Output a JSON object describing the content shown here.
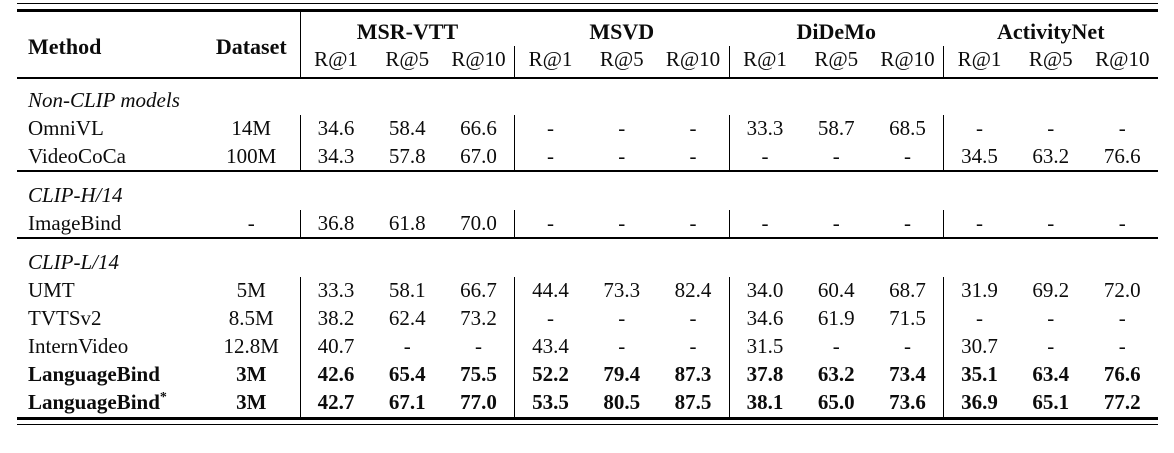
{
  "table": {
    "columns": {
      "method": "Method",
      "dataset": "Dataset"
    },
    "groups": [
      {
        "label": "MSR-VTT",
        "metrics": [
          "R@1",
          "R@5",
          "R@10"
        ]
      },
      {
        "label": "MSVD",
        "metrics": [
          "R@1",
          "R@5",
          "R@10"
        ]
      },
      {
        "label": "DiDeMo",
        "metrics": [
          "R@1",
          "R@5",
          "R@10"
        ]
      },
      {
        "label": "ActivityNet",
        "metrics": [
          "R@1",
          "R@5",
          "R@10"
        ]
      }
    ],
    "sections": [
      {
        "header": "Non-CLIP models",
        "rows": [
          {
            "method": "OmniVL",
            "dataset": "14M",
            "bold": false,
            "values": [
              "34.6",
              "58.4",
              "66.6",
              "-",
              "-",
              "-",
              "33.3",
              "58.7",
              "68.5",
              "-",
              "-",
              "-"
            ]
          },
          {
            "method": "VideoCoCa",
            "dataset": "100M",
            "bold": false,
            "values": [
              "34.3",
              "57.8",
              "67.0",
              "-",
              "-",
              "-",
              "-",
              "-",
              "-",
              "34.5",
              "63.2",
              "76.6"
            ]
          }
        ]
      },
      {
        "header": "CLIP-H/14",
        "rows": [
          {
            "method": "ImageBind",
            "dataset": "-",
            "bold": false,
            "values": [
              "36.8",
              "61.8",
              "70.0",
              "-",
              "-",
              "-",
              "-",
              "-",
              "-",
              "-",
              "-",
              "-"
            ]
          }
        ]
      },
      {
        "header": "CLIP-L/14",
        "rows": [
          {
            "method": "UMT",
            "dataset": "5M",
            "bold": false,
            "values": [
              "33.3",
              "58.1",
              "66.7",
              "44.4",
              "73.3",
              "82.4",
              "34.0",
              "60.4",
              "68.7",
              "31.9",
              "69.2",
              "72.0"
            ]
          },
          {
            "method": "TVTSv2",
            "dataset": "8.5M",
            "bold": false,
            "values": [
              "38.2",
              "62.4",
              "73.2",
              "-",
              "-",
              "-",
              "34.6",
              "61.9",
              "71.5",
              "-",
              "-",
              "-"
            ]
          },
          {
            "method": "InternVideo",
            "dataset": "12.8M",
            "bold": false,
            "values": [
              "40.7",
              "-",
              "-",
              "43.4",
              "-",
              "-",
              "31.5",
              "-",
              "-",
              "30.7",
              "-",
              "-"
            ]
          },
          {
            "method": "LanguageBind",
            "dataset": "3M",
            "bold": true,
            "values": [
              "42.6",
              "65.4",
              "75.5",
              "52.2",
              "79.4",
              "87.3",
              "37.8",
              "63.2",
              "73.4",
              "35.1",
              "63.4",
              "76.6"
            ]
          },
          {
            "method": "LanguageBind",
            "method_sup": "*",
            "dataset": "3M",
            "bold": true,
            "values": [
              "42.7",
              "67.1",
              "77.0",
              "53.5",
              "80.5",
              "87.5",
              "38.1",
              "65.0",
              "73.6",
              "36.9",
              "65.1",
              "77.2"
            ]
          }
        ]
      }
    ],
    "colors": {
      "text": "#0c0c0c",
      "rule": "#000000",
      "background": "#ffffff"
    }
  }
}
